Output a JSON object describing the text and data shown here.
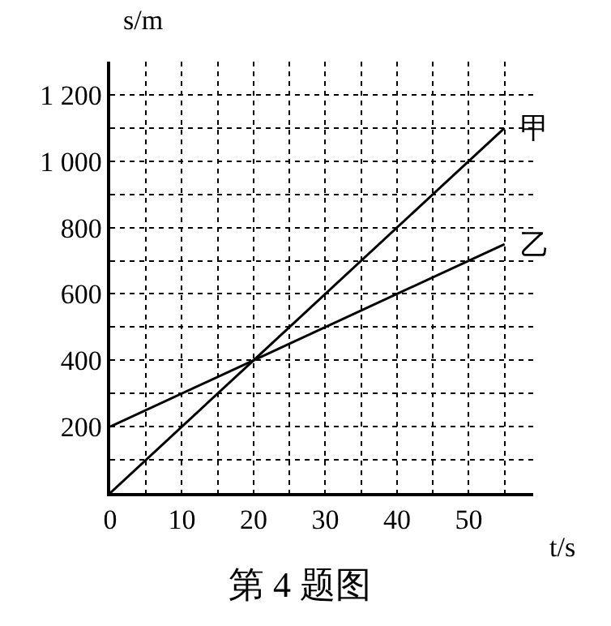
{
  "chart_data": {
    "type": "line",
    "title": "第 4 题图",
    "xlabel": "t/s",
    "ylabel": "s/m",
    "x": [
      0,
      20,
      55
    ],
    "series": [
      {
        "name": "甲",
        "color": "#000000",
        "values": [
          0,
          400,
          1100
        ]
      },
      {
        "name": "乙",
        "color": "#000000",
        "values": [
          200,
          400,
          750
        ]
      }
    ],
    "xlim": [
      0,
      59
    ],
    "ylim": [
      0,
      1300
    ],
    "xticks": [
      0,
      {
        "value": 5,
        "label": null
      },
      10,
      {
        "value": 15,
        "label": null
      },
      20,
      {
        "value": 25,
        "label": null
      },
      30,
      {
        "value": 35,
        "label": null
      },
      40,
      {
        "value": 45,
        "label": null
      },
      50,
      {
        "value": 55,
        "label": null
      }
    ],
    "yticks": [
      {
        "value": 100,
        "label": null
      },
      200,
      {
        "value": 300,
        "label": null
      },
      400,
      {
        "value": 500,
        "label": null
      },
      600,
      {
        "value": 700,
        "label": null
      },
      800,
      {
        "value": 900,
        "label": null
      },
      {
        "value": 1000,
        "label": "1 000"
      },
      {
        "value": 1100,
        "label": null
      },
      {
        "value": 1200,
        "label": "1 200"
      }
    ],
    "grid": true,
    "legend": false,
    "marker": "none",
    "line_style": "solid"
  }
}
